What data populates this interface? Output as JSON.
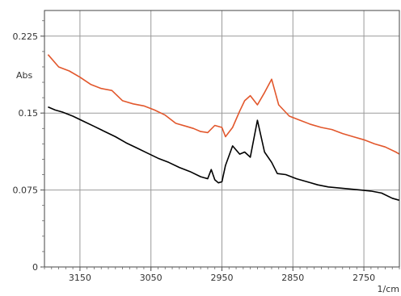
{
  "chart_data": {
    "type": "line",
    "title": "",
    "xlabel": "1/cm",
    "ylabel": "Abs",
    "xlim": [
      3200,
      2700
    ],
    "xreversed": true,
    "ylim": [
      0,
      0.25
    ],
    "grid": true,
    "xticks": [
      3150,
      3050,
      2950,
      2850,
      2750
    ],
    "xtick_labels": [
      "3150",
      "3050",
      "2950",
      "2850",
      "2750"
    ],
    "yticks": [
      0,
      0.075,
      0.15,
      0.225
    ],
    "ytick_labels": [
      "0",
      "0.075",
      "0.15",
      "0.225"
    ],
    "series": [
      {
        "color": "#e2572c",
        "x": [
          3195,
          3180,
          3165,
          3150,
          3135,
          3120,
          3105,
          3090,
          3075,
          3060,
          3045,
          3030,
          3015,
          3000,
          2990,
          2980,
          2970,
          2960,
          2950,
          2945,
          2935,
          2925,
          2918,
          2910,
          2900,
          2890,
          2880,
          2870,
          2855,
          2840,
          2825,
          2810,
          2795,
          2780,
          2765,
          2750,
          2735,
          2720,
          2705,
          2700
        ],
        "y": [
          0.207,
          0.195,
          0.191,
          0.185,
          0.178,
          0.174,
          0.172,
          0.162,
          0.159,
          0.157,
          0.153,
          0.148,
          0.14,
          0.137,
          0.135,
          0.132,
          0.131,
          0.138,
          0.136,
          0.127,
          0.136,
          0.152,
          0.162,
          0.167,
          0.158,
          0.17,
          0.183,
          0.158,
          0.147,
          0.143,
          0.139,
          0.136,
          0.134,
          0.13,
          0.127,
          0.124,
          0.12,
          0.117,
          0.112,
          0.11
        ]
      },
      {
        "color": "#000000",
        "x": [
          3195,
          3185,
          3175,
          3160,
          3145,
          3130,
          3115,
          3100,
          3085,
          3070,
          3055,
          3040,
          3025,
          3010,
          2995,
          2980,
          2970,
          2965,
          2960,
          2955,
          2950,
          2945,
          2935,
          2925,
          2918,
          2910,
          2900,
          2890,
          2880,
          2872,
          2860,
          2845,
          2830,
          2815,
          2800,
          2785,
          2770,
          2755,
          2740,
          2725,
          2710,
          2700
        ],
        "y": [
          0.156,
          0.153,
          0.151,
          0.147,
          0.142,
          0.137,
          0.132,
          0.127,
          0.121,
          0.116,
          0.111,
          0.106,
          0.102,
          0.097,
          0.093,
          0.088,
          0.086,
          0.095,
          0.085,
          0.082,
          0.083,
          0.099,
          0.118,
          0.11,
          0.112,
          0.107,
          0.143,
          0.112,
          0.102,
          0.091,
          0.09,
          0.086,
          0.083,
          0.08,
          0.078,
          0.077,
          0.076,
          0.075,
          0.074,
          0.072,
          0.067,
          0.065
        ]
      }
    ]
  }
}
